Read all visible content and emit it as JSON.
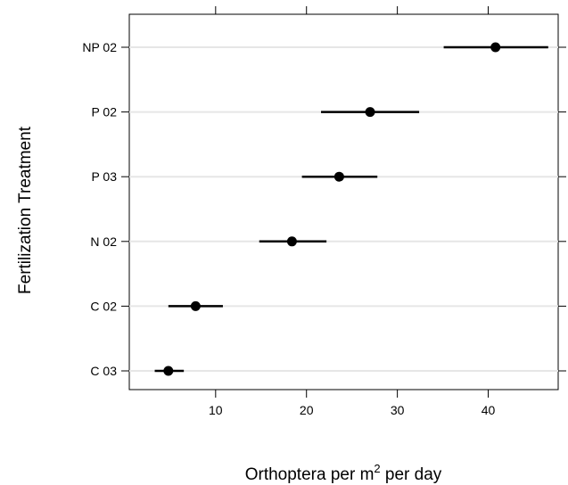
{
  "chart_data": {
    "type": "dotplot-with-error-bars",
    "title": "",
    "xlabel": {
      "before": "Orthoptera per m",
      "superscript": "2",
      "after": " per day"
    },
    "ylabel": "Fertilization Treatment",
    "xlim": [
      0.5,
      47.7
    ],
    "xticks": [
      10,
      20,
      30,
      40
    ],
    "tick_labels": [
      "10",
      "20",
      "30",
      "40"
    ],
    "grid": "horizontal",
    "categories": [
      "NP 02",
      "P 02",
      "P 03",
      "N 02",
      "C 02",
      "C 03"
    ],
    "series": [
      {
        "values": [
          40.8,
          27.0,
          23.6,
          18.4,
          7.8,
          4.8
        ],
        "lower": [
          35.1,
          21.6,
          19.5,
          14.8,
          4.8,
          3.3
        ],
        "upper": [
          46.6,
          32.4,
          27.8,
          22.2,
          10.8,
          6.5
        ]
      }
    ]
  }
}
